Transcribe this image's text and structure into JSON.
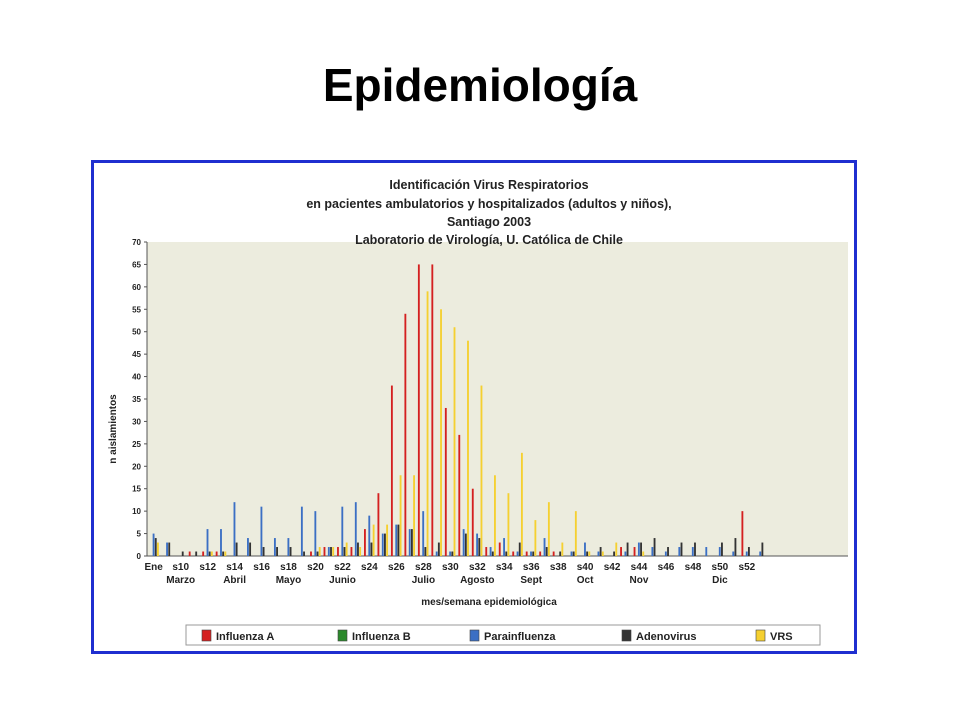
{
  "slide": {
    "title": "Epidemiología"
  },
  "chart_data": {
    "type": "bar",
    "title": [
      "Identificación Virus Respiratorios",
      "en pacientes ambulatorios y hospitalizados  (adultos y niños),",
      "Santiago 2003",
      "Laboratorio de Virología, U. Católica de Chile"
    ],
    "xlabel": "mes/semana epidemiológica",
    "ylabel": "n aislamientos",
    "ylim": [
      0,
      70
    ],
    "yticks": [
      0,
      5,
      10,
      15,
      20,
      25,
      30,
      35,
      40,
      45,
      50,
      55,
      60,
      65,
      70
    ],
    "grid": false,
    "legend_position": "bottom",
    "categories": [
      "1",
      "2",
      "3",
      "4",
      "5",
      "6",
      "7",
      "8",
      "9",
      "10",
      "11",
      "12",
      "13",
      "14",
      "15",
      "16",
      "17",
      "18",
      "19",
      "20",
      "21",
      "22",
      "23",
      "24",
      "25",
      "26",
      "27",
      "28",
      "29",
      "30",
      "31",
      "32",
      "33",
      "34",
      "35",
      "36",
      "37",
      "38",
      "39",
      "40",
      "41",
      "42",
      "43",
      "44",
      "45",
      "46",
      "47",
      "48",
      "49",
      "50",
      "51",
      "52"
    ],
    "week_labels": [
      {
        "week": 1,
        "label": "Ene"
      },
      {
        "week": 3,
        "label": "s10"
      },
      {
        "week": 5,
        "label": "s12"
      },
      {
        "week": 7,
        "label": "s14"
      },
      {
        "week": 9,
        "label": "s16"
      },
      {
        "week": 11,
        "label": "s18"
      },
      {
        "week": 13,
        "label": "s20"
      },
      {
        "week": 15,
        "label": "s22"
      },
      {
        "week": 17,
        "label": "s24"
      },
      {
        "week": 19,
        "label": "s26"
      },
      {
        "week": 21,
        "label": "s28"
      },
      {
        "week": 23,
        "label": "s30"
      },
      {
        "week": 25,
        "label": "s32"
      },
      {
        "week": 27,
        "label": "s34"
      },
      {
        "week": 29,
        "label": "s36"
      },
      {
        "week": 31,
        "label": "s38"
      },
      {
        "week": 33,
        "label": "s40"
      },
      {
        "week": 35,
        "label": "s42"
      },
      {
        "week": 37,
        "label": "s44"
      },
      {
        "week": 39,
        "label": "s46"
      },
      {
        "week": 41,
        "label": "s48"
      },
      {
        "week": 43,
        "label": "s50"
      },
      {
        "week": 45,
        "label": "s52"
      }
    ],
    "month_labels": [
      {
        "week": 3,
        "label": "Marzo"
      },
      {
        "week": 7,
        "label": "Abril"
      },
      {
        "week": 11,
        "label": "Mayo"
      },
      {
        "week": 15,
        "label": "Junio"
      },
      {
        "week": 21,
        "label": "Julio"
      },
      {
        "week": 25,
        "label": "Agosto"
      },
      {
        "week": 29,
        "label": "Sept"
      },
      {
        "week": 33,
        "label": "Oct"
      },
      {
        "week": 37,
        "label": "Nov"
      },
      {
        "week": 43,
        "label": "Dic"
      }
    ],
    "series": [
      {
        "name": "Influenza A",
        "color": "#d42020",
        "values": [
          0,
          0,
          0,
          1,
          1,
          1,
          0,
          0,
          0,
          0,
          0,
          0,
          1,
          2,
          2,
          2,
          6,
          14,
          38,
          54,
          65,
          65,
          33,
          27,
          15,
          2,
          3,
          1,
          1,
          1,
          1,
          0,
          0,
          0,
          0,
          2,
          2,
          0,
          0,
          0,
          0,
          0,
          0,
          0,
          10,
          0,
          0,
          0,
          0,
          0,
          0,
          0
        ]
      },
      {
        "name": "Influenza B",
        "color": "#2c8a2c",
        "values": [
          0,
          0,
          0,
          0,
          0,
          0,
          0,
          0,
          0,
          0,
          0,
          0,
          0,
          0,
          0,
          0,
          0,
          0,
          0,
          0,
          0,
          0,
          0,
          0,
          0,
          0,
          0,
          0,
          0,
          0,
          0,
          0,
          0,
          0,
          0,
          0,
          0,
          0,
          0,
          0,
          0,
          0,
          0,
          0,
          0,
          0,
          0,
          0,
          0,
          0,
          0,
          0
        ]
      },
      {
        "name": "Parainfluenza",
        "color": "#3b6fc4",
        "values": [
          5,
          3,
          0,
          0,
          6,
          6,
          12,
          4,
          11,
          4,
          4,
          11,
          10,
          2,
          11,
          12,
          9,
          5,
          7,
          6,
          10,
          1,
          1,
          6,
          5,
          2,
          4,
          1,
          1,
          4,
          0,
          1,
          3,
          1,
          0,
          1,
          3,
          2,
          1,
          2,
          2,
          2,
          2,
          1,
          1,
          1,
          0,
          0,
          0,
          0,
          0,
          0
        ]
      },
      {
        "name": "Adenovirus",
        "color": "#333333",
        "values": [
          4,
          3,
          1,
          1,
          1,
          1,
          3,
          3,
          2,
          2,
          2,
          1,
          1,
          2,
          2,
          3,
          3,
          5,
          7,
          6,
          2,
          3,
          1,
          5,
          4,
          1,
          1,
          3,
          1,
          2,
          1,
          1,
          1,
          2,
          1,
          3,
          3,
          4,
          2,
          3,
          3,
          0,
          3,
          4,
          2,
          3,
          0,
          0,
          0,
          0,
          0,
          0
        ]
      },
      {
        "name": "VRS",
        "color": "#f5d030",
        "values": [
          3,
          0,
          0,
          0,
          1,
          1,
          0,
          0,
          0,
          0,
          0,
          0,
          2,
          2,
          3,
          2,
          7,
          7,
          18,
          18,
          59,
          55,
          51,
          48,
          38,
          18,
          14,
          23,
          8,
          12,
          3,
          10,
          1,
          1,
          3,
          0,
          1,
          0,
          0,
          0,
          0,
          0,
          0,
          0,
          0,
          0,
          0,
          0,
          0,
          0,
          0,
          0
        ]
      }
    ]
  }
}
